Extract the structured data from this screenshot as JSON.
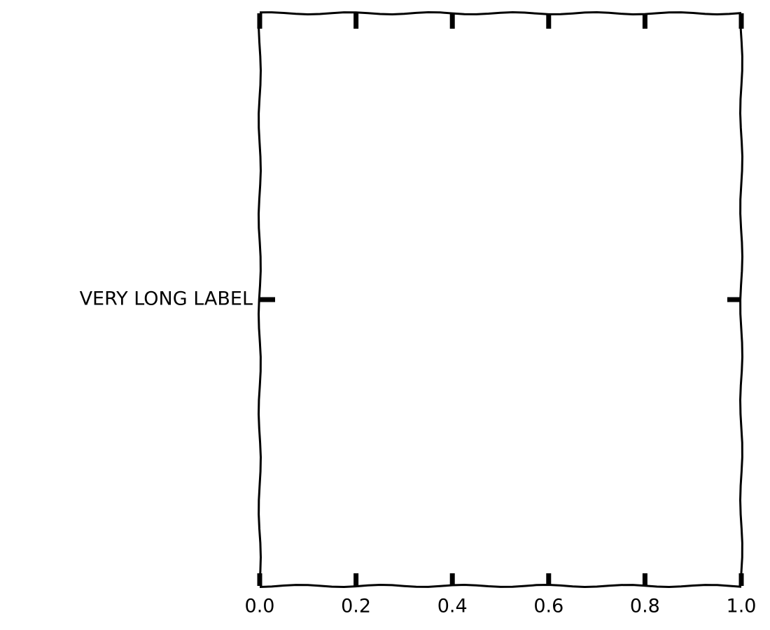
{
  "chart_data": {
    "type": "line",
    "xlim": [
      0,
      1
    ],
    "xticks": [
      {
        "value": 0,
        "label": "0.0"
      },
      0.2,
      0.4,
      0.6,
      0.8,
      {
        "value": 1,
        "label": "1.0"
      }
    ],
    "ylim": [
      0,
      1
    ],
    "yticks": [
      {
        "value": 0.5,
        "label": "VERY LONG LABEL"
      }
    ],
    "grid": false
  }
}
